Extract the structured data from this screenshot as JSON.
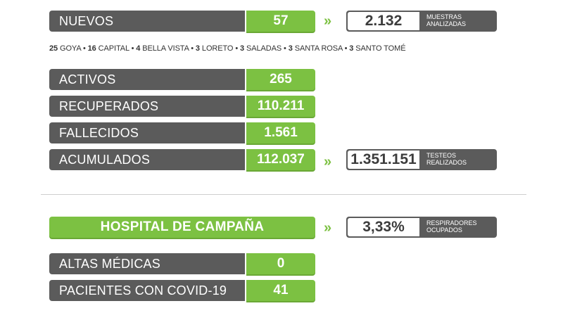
{
  "nuevos": {
    "label": "NUEVOS",
    "value": "57",
    "muestras_value": "2.132",
    "muestras_caption_1": "MUESTRAS",
    "muestras_caption_2": "ANALIZADAS"
  },
  "breakdown": [
    {
      "count": "25",
      "place": "GOYA"
    },
    {
      "count": "16",
      "place": "CAPITAL"
    },
    {
      "count": "4",
      "place": "BELLA VISTA"
    },
    {
      "count": "3",
      "place": "LORETO"
    },
    {
      "count": "3",
      "place": "SALADAS"
    },
    {
      "count": "3",
      "place": "SANTA ROSA"
    },
    {
      "count": "3",
      "place": "SANTO TOMÉ"
    }
  ],
  "rows": [
    {
      "label": "ACTIVOS",
      "value": "265"
    },
    {
      "label": "RECUPERADOS",
      "value": "110.211"
    },
    {
      "label": "FALLECIDOS",
      "value": "1.561"
    },
    {
      "label": "ACUMULADOS",
      "value": "112.037"
    }
  ],
  "testeos": {
    "value": "1.351.151",
    "caption_1": "TESTEOS",
    "caption_2": "REALIZADOS"
  },
  "hospital": {
    "title": "HOSPITAL DE CAMPAÑA",
    "respiradores_value": "3,33%",
    "caption_1": "RESPIRADORES",
    "caption_2": "OCUPADOS",
    "rows": [
      {
        "label": "ALTAS MÉDICAS",
        "value": "0"
      },
      {
        "label": "PACIENTES CON COVID-19",
        "value": "41"
      }
    ]
  },
  "arrow_glyph": "»",
  "colors": {
    "green": "#7cc142",
    "gray": "#5b5b5b"
  }
}
